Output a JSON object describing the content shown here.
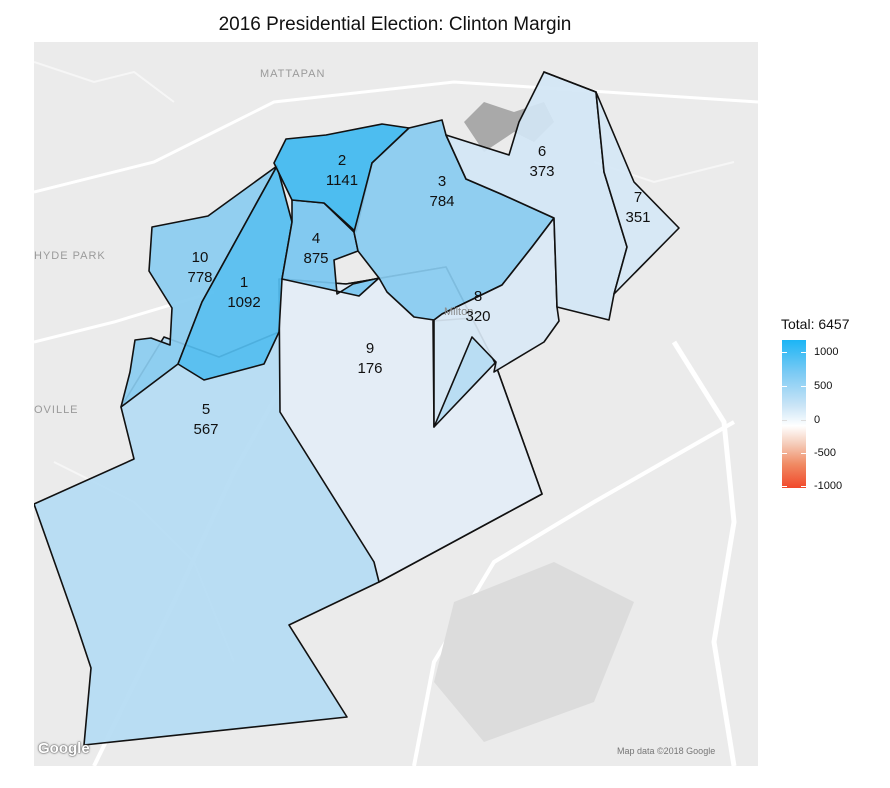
{
  "title": "2016 Presidential Election: Clinton Margin",
  "basemap": {
    "place_labels": [
      "MATTAPAN",
      "HYDE PARK",
      "OVILLE"
    ],
    "town_label": "Milton",
    "google_logo": "Google",
    "copyright": "Map data ©2018 Google"
  },
  "legend": {
    "title": "Total: 6457",
    "ticks": [
      "1000",
      "500",
      "0",
      "-500",
      "-1000"
    ],
    "colors": {
      "high": "#1cb5f5",
      "mid": "#ffffff",
      "low": "#f1482a"
    }
  },
  "precincts": [
    {
      "id": "1",
      "margin": "1092",
      "fill": "#52bdf0"
    },
    {
      "id": "2",
      "margin": "1141",
      "fill": "#3fb8f0"
    },
    {
      "id": "3",
      "margin": "784",
      "fill": "#88cbf0"
    },
    {
      "id": "4",
      "margin": "875",
      "fill": "#78c6f0"
    },
    {
      "id": "5",
      "margin": "567",
      "fill": "#b4dbf3"
    },
    {
      "id": "6",
      "margin": "373",
      "fill": "#d3e6f5"
    },
    {
      "id": "7",
      "margin": "351",
      "fill": "#d5e7f5"
    },
    {
      "id": "8",
      "margin": "320",
      "fill": "#d9e8f5"
    },
    {
      "id": "9",
      "margin": "176",
      "fill": "#e7eef6"
    },
    {
      "id": "10",
      "margin": "778",
      "fill": "#8accf0"
    }
  ]
}
